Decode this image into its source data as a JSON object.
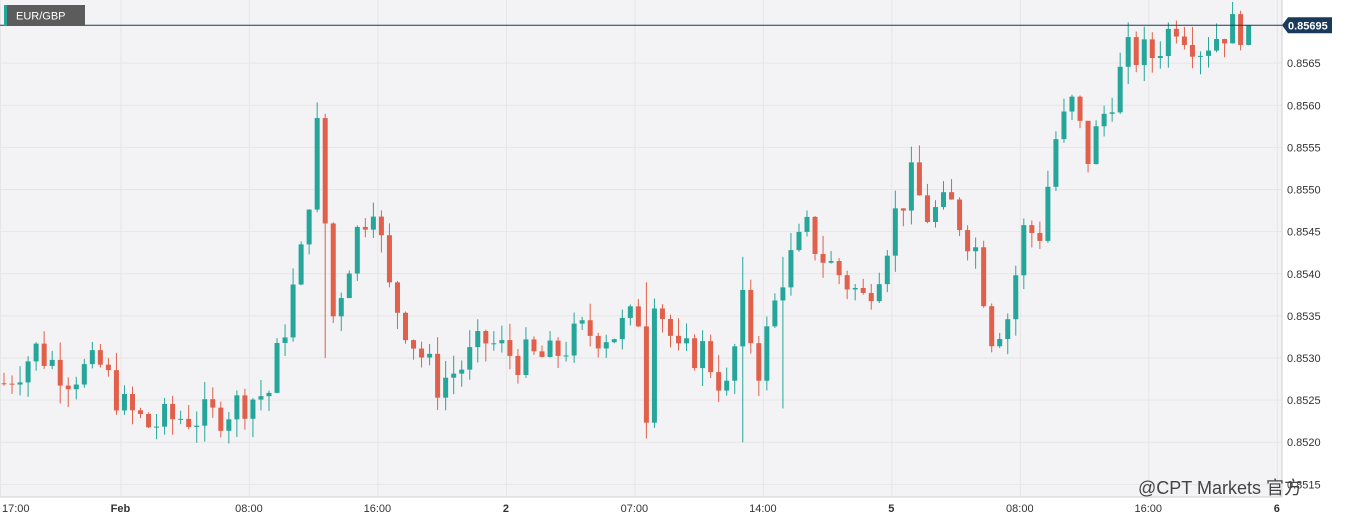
{
  "symbol": "EUR/GBP",
  "watermark": "@CPT Markets 官方",
  "current_price": "0.85695",
  "colors": {
    "up": "#26a69a",
    "down": "#e0604b",
    "price_line": "#1a3a5c",
    "grid": "#e6e6e6",
    "plot_bg": "#f3f3f5"
  },
  "chart_data": {
    "type": "candlestick",
    "title": "EUR/GBP",
    "ylim": [
      0.85135,
      0.85725
    ],
    "y_ticks": [
      {
        "value": 0.8515,
        "label": "0.8515"
      },
      {
        "value": 0.852,
        "label": "0.8520"
      },
      {
        "value": 0.8525,
        "label": "0.8525"
      },
      {
        "value": 0.853,
        "label": "0.8530"
      },
      {
        "value": 0.8535,
        "label": "0.8535"
      },
      {
        "value": 0.854,
        "label": "0.8540"
      },
      {
        "value": 0.8545,
        "label": "0.8545"
      },
      {
        "value": 0.855,
        "label": "0.8550"
      },
      {
        "value": 0.8555,
        "label": "0.8555"
      },
      {
        "value": 0.856,
        "label": "0.8560"
      },
      {
        "value": 0.8565,
        "label": "0.8565"
      }
    ],
    "x_ticks": [
      {
        "index": 0,
        "label": "17:00",
        "bold": false
      },
      {
        "index": 15,
        "label": "Feb",
        "bold": true
      },
      {
        "index": 31,
        "label": "08:00",
        "bold": false
      },
      {
        "index": 47,
        "label": "16:00",
        "bold": false
      },
      {
        "index": 63,
        "label": "2",
        "bold": true
      },
      {
        "index": 79,
        "label": "07:00",
        "bold": false
      },
      {
        "index": 95,
        "label": "14:00",
        "bold": false
      },
      {
        "index": 111,
        "label": "5",
        "bold": true
      },
      {
        "index": 127,
        "label": "08:00",
        "bold": false
      },
      {
        "index": 143,
        "label": "16:00",
        "bold": false
      },
      {
        "index": 159,
        "label": "6",
        "bold": true
      }
    ],
    "last_price": 0.85695,
    "anchors": [
      [
        0,
        0.8527
      ],
      [
        4,
        0.8531
      ],
      [
        8,
        0.8528
      ],
      [
        12,
        0.8529
      ],
      [
        15,
        0.8524
      ],
      [
        18,
        0.8522
      ],
      [
        22,
        0.8523
      ],
      [
        26,
        0.8523
      ],
      [
        30,
        0.8525
      ],
      [
        33,
        0.8526
      ],
      [
        35,
        0.8534
      ],
      [
        37,
        0.8542
      ],
      [
        39,
        0.8557
      ],
      [
        41,
        0.8535
      ],
      [
        44,
        0.8545
      ],
      [
        46,
        0.8549
      ],
      [
        48,
        0.8538
      ],
      [
        51,
        0.8532
      ],
      [
        54,
        0.8527
      ],
      [
        57,
        0.8529
      ],
      [
        60,
        0.8532
      ],
      [
        64,
        0.853
      ],
      [
        68,
        0.853
      ],
      [
        72,
        0.8533
      ],
      [
        76,
        0.8533
      ],
      [
        79,
        0.8535
      ],
      [
        80,
        0.8524
      ],
      [
        81,
        0.8538
      ],
      [
        84,
        0.853
      ],
      [
        87,
        0.8531
      ],
      [
        90,
        0.8526
      ],
      [
        92,
        0.8536
      ],
      [
        94,
        0.8529
      ],
      [
        97,
        0.854
      ],
      [
        100,
        0.8545
      ],
      [
        102,
        0.8542
      ],
      [
        105,
        0.8539
      ],
      [
        107,
        0.8537
      ],
      [
        109,
        0.8541
      ],
      [
        111,
        0.8547
      ],
      [
        113,
        0.8551
      ],
      [
        115,
        0.8547
      ],
      [
        118,
        0.8548
      ],
      [
        121,
        0.8543
      ],
      [
        123,
        0.8533
      ],
      [
        125,
        0.8535
      ],
      [
        127,
        0.8545
      ],
      [
        129,
        0.8545
      ],
      [
        131,
        0.8556
      ],
      [
        133,
        0.856
      ],
      [
        135,
        0.8554
      ],
      [
        137,
        0.8559
      ],
      [
        140,
        0.8566
      ],
      [
        143,
        0.8566
      ],
      [
        146,
        0.857
      ],
      [
        149,
        0.8567
      ],
      [
        152,
        0.8569
      ],
      [
        155,
        0.85695
      ]
    ],
    "spikes": [
      {
        "index": 40,
        "high": 0.8559,
        "low": 0.853
      },
      {
        "index": 80,
        "high": 0.8539,
        "low": 0.8522
      },
      {
        "index": 92,
        "high": 0.8542,
        "low": 0.852
      },
      {
        "index": 97,
        "high": 0.8542,
        "low": 0.8524
      }
    ]
  }
}
